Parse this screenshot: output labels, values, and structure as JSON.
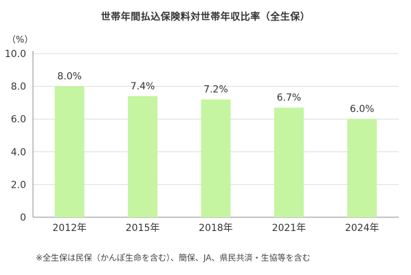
{
  "chart_data": {
    "type": "bar",
    "title": "世帯年間払込保険料対世帯年収比率（全生保）",
    "y_unit_label": "（%）",
    "xlabel": "",
    "ylabel": "",
    "categories": [
      "2012年",
      "2015年",
      "2018年",
      "2021年",
      "2024年"
    ],
    "values": [
      8.0,
      7.4,
      7.2,
      6.7,
      6.0
    ],
    "value_labels": [
      "8.0%",
      "7.4%",
      "7.2%",
      "6.7%",
      "6.0%"
    ],
    "ylim": [
      0,
      10
    ],
    "yticks": [
      0,
      2.0,
      4.0,
      6.0,
      8.0,
      10.0
    ],
    "ytick_labels": [
      "0",
      "2.0",
      "4.0",
      "6.0",
      "8.0",
      "10.0"
    ],
    "grid": true,
    "bar_color": "#c5f5a0",
    "footnote": "※全生保は民保（かんぽ生命を含む）、簡保、JA、県民共済・生協等を含む"
  }
}
